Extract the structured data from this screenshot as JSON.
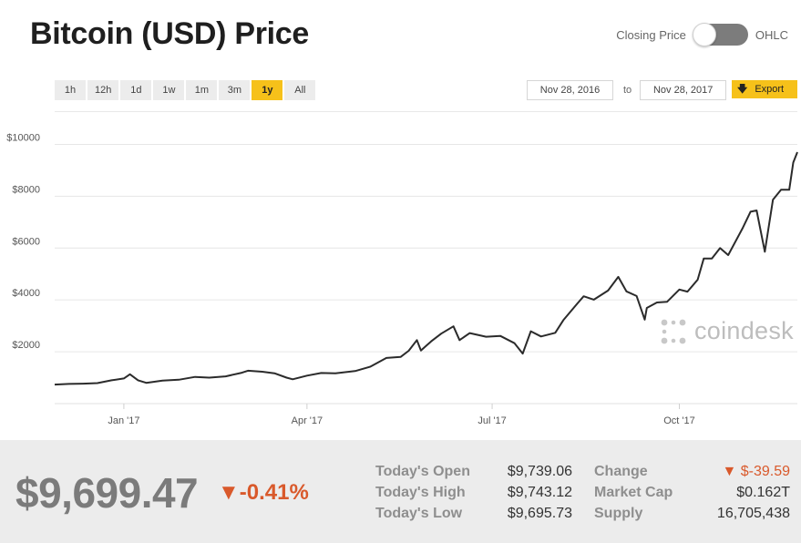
{
  "header": {
    "title": "Bitcoin (USD) Price",
    "toggle_left": "Closing Price",
    "toggle_right": "OHLC"
  },
  "range_buttons": [
    {
      "label": "1h",
      "active": false
    },
    {
      "label": "12h",
      "active": false
    },
    {
      "label": "1d",
      "active": false
    },
    {
      "label": "1w",
      "active": false
    },
    {
      "label": "1m",
      "active": false
    },
    {
      "label": "3m",
      "active": false
    },
    {
      "label": "1y",
      "active": true
    },
    {
      "label": "All",
      "active": false
    }
  ],
  "date_range": {
    "from": "Nov 28, 2016",
    "to_label": "to",
    "to": "Nov 28, 2017",
    "export_label": "Export"
  },
  "watermark": "coindesk",
  "colors": {
    "accent": "#f6c11a",
    "negative": "#d9592b",
    "line": "#2b2b2b"
  },
  "footer": {
    "price": "$9,699.47",
    "change_pct": "▼-0.41%",
    "stats_left": [
      {
        "label": "Today's Open",
        "value": "$9,739.06"
      },
      {
        "label": "Today's High",
        "value": "$9,743.12"
      },
      {
        "label": "Today's Low",
        "value": "$9,695.73"
      }
    ],
    "stats_right": [
      {
        "label": "Change",
        "value": "▼ $-39.59",
        "negative": true
      },
      {
        "label": "Market Cap",
        "value": "$0.162T",
        "negative": false
      },
      {
        "label": "Supply",
        "value": "16,705,438",
        "negative": false
      }
    ]
  },
  "chart_data": {
    "type": "line",
    "title": "Bitcoin (USD) Price",
    "xlabel": "",
    "ylabel": "",
    "x_range": [
      "2016-11-28",
      "2017-11-28"
    ],
    "ylim": [
      0,
      11000
    ],
    "grid": true,
    "y_ticks": [
      {
        "value": 2000,
        "label": "$2000"
      },
      {
        "value": 4000,
        "label": "$4000"
      },
      {
        "value": 6000,
        "label": "$6000"
      },
      {
        "value": 8000,
        "label": "$8000"
      },
      {
        "value": 10000,
        "label": "$10000"
      }
    ],
    "x_ticks": [
      {
        "date": "2017-01-01",
        "label": "Jan '17"
      },
      {
        "date": "2017-04-01",
        "label": "Apr '17"
      },
      {
        "date": "2017-07-01",
        "label": "Jul '17"
      },
      {
        "date": "2017-10-01",
        "label": "Oct '17"
      }
    ],
    "series": [
      {
        "points": [
          [
            "2016-11-28",
            735
          ],
          [
            "2016-12-05",
            760
          ],
          [
            "2016-12-12",
            770
          ],
          [
            "2016-12-19",
            790
          ],
          [
            "2016-12-26",
            900
          ],
          [
            "2017-01-01",
            970
          ],
          [
            "2017-01-04",
            1130
          ],
          [
            "2017-01-08",
            900
          ],
          [
            "2017-01-12",
            800
          ],
          [
            "2017-01-20",
            890
          ],
          [
            "2017-01-28",
            920
          ],
          [
            "2017-02-05",
            1030
          ],
          [
            "2017-02-12",
            1000
          ],
          [
            "2017-02-20",
            1050
          ],
          [
            "2017-02-28",
            1190
          ],
          [
            "2017-03-03",
            1270
          ],
          [
            "2017-03-10",
            1230
          ],
          [
            "2017-03-16",
            1170
          ],
          [
            "2017-03-22",
            1000
          ],
          [
            "2017-03-25",
            940
          ],
          [
            "2017-04-01",
            1080
          ],
          [
            "2017-04-08",
            1180
          ],
          [
            "2017-04-15",
            1170
          ],
          [
            "2017-04-25",
            1260
          ],
          [
            "2017-05-02",
            1420
          ],
          [
            "2017-05-10",
            1760
          ],
          [
            "2017-05-17",
            1800
          ],
          [
            "2017-05-21",
            2040
          ],
          [
            "2017-05-25",
            2450
          ],
          [
            "2017-05-27",
            2050
          ],
          [
            "2017-06-01",
            2400
          ],
          [
            "2017-06-06",
            2700
          ],
          [
            "2017-06-12",
            2980
          ],
          [
            "2017-06-15",
            2450
          ],
          [
            "2017-06-20",
            2720
          ],
          [
            "2017-06-28",
            2580
          ],
          [
            "2017-07-05",
            2610
          ],
          [
            "2017-07-12",
            2330
          ],
          [
            "2017-07-16",
            1930
          ],
          [
            "2017-07-20",
            2790
          ],
          [
            "2017-07-25",
            2590
          ],
          [
            "2017-08-01",
            2730
          ],
          [
            "2017-08-05",
            3220
          ],
          [
            "2017-08-12",
            3870
          ],
          [
            "2017-08-15",
            4140
          ],
          [
            "2017-08-20",
            4010
          ],
          [
            "2017-08-27",
            4360
          ],
          [
            "2017-09-01",
            4890
          ],
          [
            "2017-09-05",
            4330
          ],
          [
            "2017-09-10",
            4150
          ],
          [
            "2017-09-14",
            3240
          ],
          [
            "2017-09-15",
            3690
          ],
          [
            "2017-09-20",
            3900
          ],
          [
            "2017-09-25",
            3930
          ],
          [
            "2017-10-01",
            4400
          ],
          [
            "2017-10-05",
            4320
          ],
          [
            "2017-10-10",
            4780
          ],
          [
            "2017-10-13",
            5600
          ],
          [
            "2017-10-17",
            5600
          ],
          [
            "2017-10-21",
            6000
          ],
          [
            "2017-10-25",
            5730
          ],
          [
            "2017-11-01",
            6750
          ],
          [
            "2017-11-05",
            7400
          ],
          [
            "2017-11-08",
            7450
          ],
          [
            "2017-11-12",
            5860
          ],
          [
            "2017-11-16",
            7860
          ],
          [
            "2017-11-20",
            8250
          ],
          [
            "2017-11-24",
            8250
          ],
          [
            "2017-11-26",
            9300
          ],
          [
            "2017-11-28",
            9699
          ]
        ]
      }
    ]
  }
}
